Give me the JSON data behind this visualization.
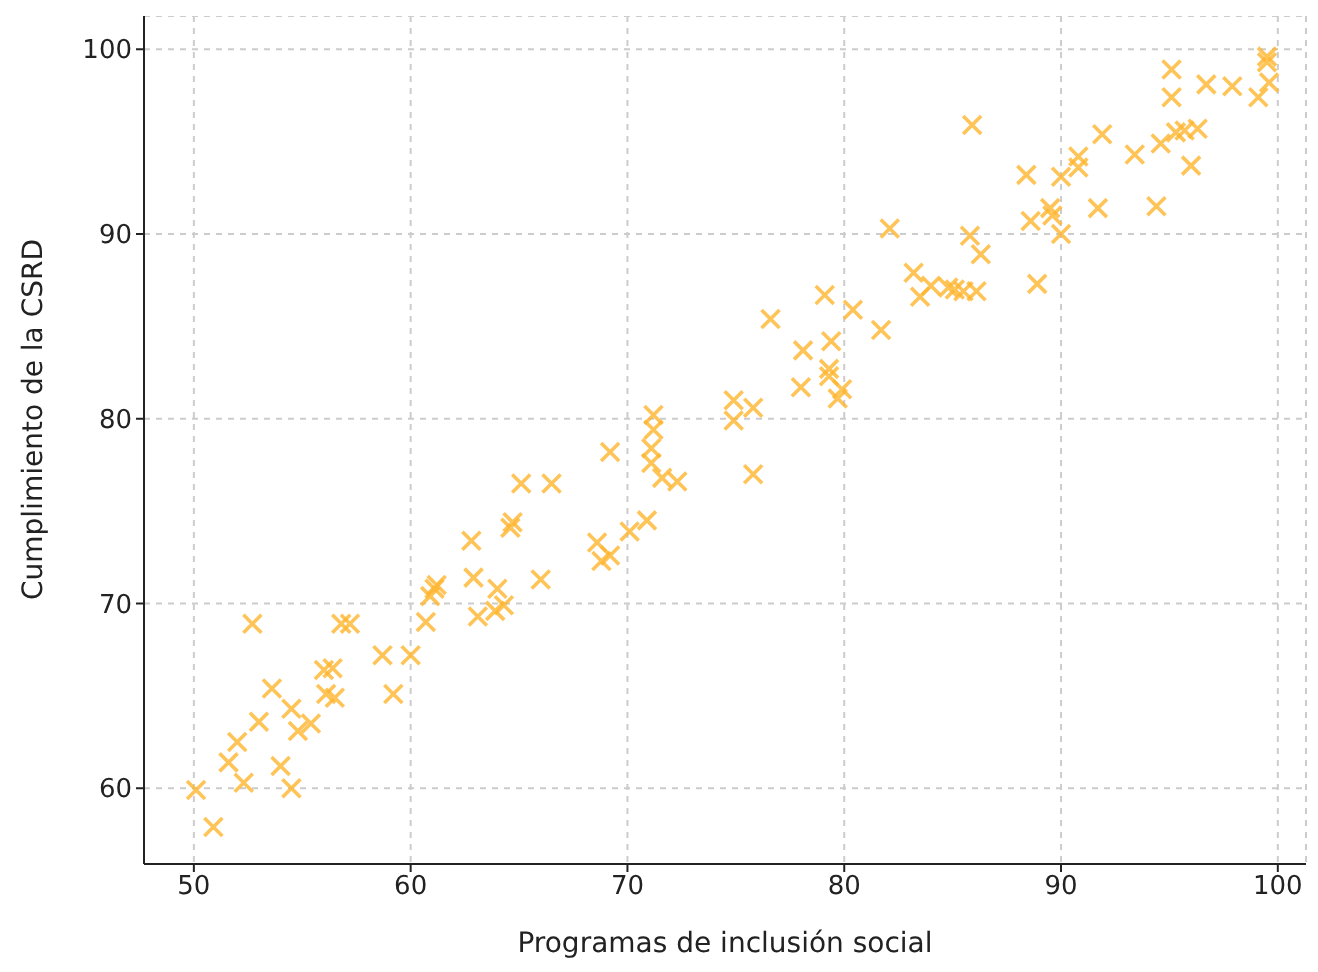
{
  "chart_data": {
    "type": "scatter",
    "xlabel": "Programas de inclusión social",
    "ylabel": "Cumplimiento de la CSRD",
    "color": "#ffb52e",
    "marker": "cross",
    "grid": true,
    "xlim": [
      47.7,
      101.3
    ],
    "ylim": [
      55.9,
      101.8
    ],
    "xticks": [
      50,
      60,
      70,
      80,
      90,
      100
    ],
    "yticks": [
      60,
      70,
      80,
      90,
      100
    ],
    "x": [
      50.1,
      50.9,
      51.6,
      52.0,
      52.3,
      52.7,
      53.0,
      53.6,
      54.0,
      54.5,
      54.5,
      54.8,
      55.4,
      56.0,
      56.4,
      56.1,
      56.5,
      56.8,
      57.2,
      58.7,
      59.2,
      60.0,
      60.7,
      61.1,
      61.2,
      60.9,
      62.8,
      62.9,
      63.1,
      64.0,
      64.3,
      63.9,
      64.6,
      64.7,
      65.1,
      66.5,
      66.0,
      68.6,
      68.8,
      69.2,
      69.2,
      70.1,
      70.9,
      71.2,
      71.2,
      71.1,
      71.1,
      71.6,
      72.3,
      74.9,
      74.9,
      75.8,
      75.8,
      76.6,
      78.1,
      78.0,
      79.1,
      79.4,
      79.3,
      79.3,
      79.9,
      79.7,
      80.4,
      81.7,
      83.2,
      83.5,
      84.0,
      84.8,
      85.9,
      82.1,
      85.8,
      86.3,
      85.1,
      85.5,
      86.1,
      88.9,
      88.4,
      90.0,
      90.8,
      90.8,
      91.9,
      93.4,
      94.6,
      95.3,
      95.7,
      96.3,
      96.0,
      88.6,
      89.5,
      89.6,
      90.0,
      91.7,
      94.4,
      95.1,
      95.1,
      96.7,
      97.9,
      99.1,
      99.5,
      99.5,
      99.6
    ],
    "values": [
      59.9,
      57.9,
      61.4,
      62.5,
      60.3,
      68.9,
      63.6,
      65.4,
      61.2,
      60.0,
      64.3,
      63.1,
      63.5,
      66.4,
      66.5,
      65.1,
      64.9,
      68.9,
      68.9,
      67.2,
      65.1,
      67.2,
      69.0,
      70.8,
      71.0,
      70.4,
      73.4,
      71.4,
      69.3,
      70.8,
      69.9,
      69.6,
      74.1,
      74.4,
      76.5,
      76.5,
      71.3,
      73.3,
      72.3,
      72.6,
      78.2,
      73.9,
      74.5,
      80.2,
      79.4,
      78.4,
      77.6,
      76.8,
      76.6,
      81.0,
      79.9,
      80.6,
      77.0,
      85.4,
      83.7,
      81.7,
      86.7,
      84.2,
      82.7,
      82.3,
      81.6,
      81.1,
      85.9,
      84.8,
      87.9,
      86.6,
      87.2,
      87.1,
      95.9,
      90.3,
      89.9,
      88.9,
      87.0,
      86.9,
      86.9,
      87.3,
      93.2,
      93.1,
      94.2,
      93.6,
      95.4,
      94.3,
      94.9,
      95.5,
      95.6,
      95.7,
      93.7,
      90.7,
      91.4,
      91.0,
      90.0,
      91.4,
      91.5,
      98.9,
      97.4,
      98.1,
      98.0,
      97.4,
      99.6,
      99.3,
      98.2
    ]
  }
}
